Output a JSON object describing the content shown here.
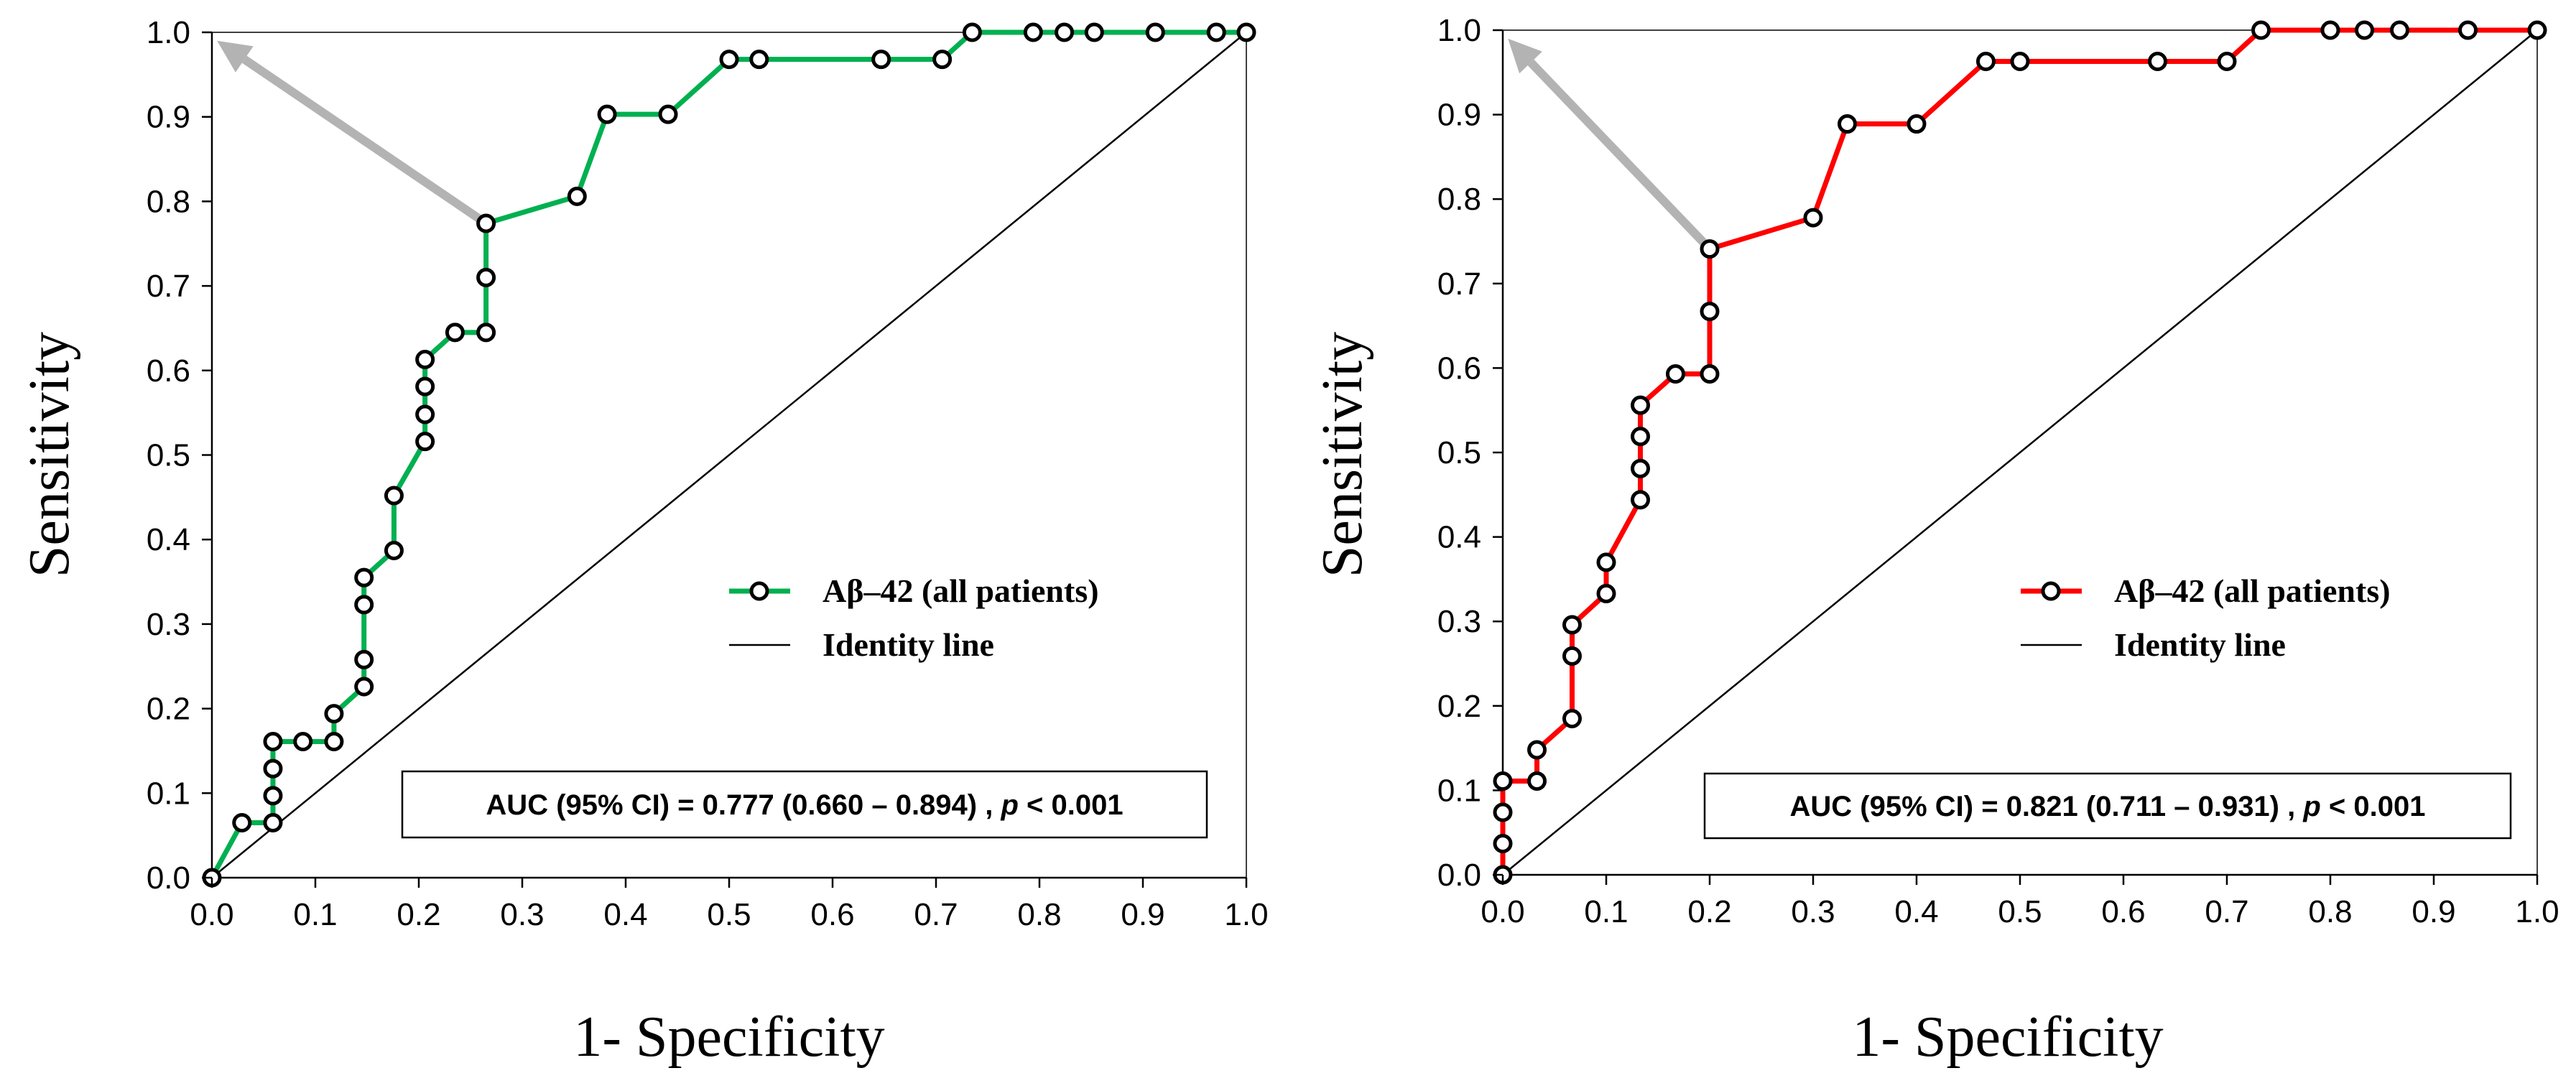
{
  "chart_data": [
    {
      "type": "line",
      "id": "left",
      "xlabel": "1- Specificity",
      "ylabel": "Sensitivity",
      "xlim": [
        0,
        1
      ],
      "ylim": [
        0,
        1
      ],
      "xticks": [
        "0.0",
        "0.1",
        "0.2",
        "0.3",
        "0.4",
        "0.5",
        "0.6",
        "0.7",
        "0.8",
        "0.9",
        "1.0"
      ],
      "yticks": [
        "0.0",
        "0.1",
        "0.2",
        "0.3",
        "0.4",
        "0.5",
        "0.6",
        "0.7",
        "0.8",
        "0.9",
        "1.0"
      ],
      "series": [
        {
          "name": "Aβ–42 (all patients)",
          "color": "#00b050",
          "x": [
            0,
            0.029,
            0.059,
            0.059,
            0.059,
            0.059,
            0.088,
            0.118,
            0.118,
            0.147,
            0.147,
            0.147,
            0.147,
            0.176,
            0.176,
            0.206,
            0.206,
            0.206,
            0.206,
            0.235,
            0.265,
            0.265,
            0.265,
            0.353,
            0.382,
            0.441,
            0.5,
            0.529,
            0.647,
            0.706,
            0.735,
            0.794,
            0.824,
            0.853,
            0.912,
            0.971,
            1.0
          ],
          "y": [
            0,
            0.065,
            0.065,
            0.097,
            0.129,
            0.161,
            0.161,
            0.161,
            0.194,
            0.226,
            0.258,
            0.323,
            0.355,
            0.387,
            0.452,
            0.516,
            0.548,
            0.581,
            0.613,
            0.645,
            0.645,
            0.71,
            0.774,
            0.806,
            0.903,
            0.903,
            0.968,
            0.968,
            0.968,
            0.968,
            1.0,
            1.0,
            1.0,
            1.0,
            1.0,
            1.0,
            1.0
          ]
        },
        {
          "name": "Identity line",
          "color": "#000000",
          "x": [
            0,
            1
          ],
          "y": [
            0,
            1
          ]
        }
      ],
      "annotation": {
        "prefix": "AUC (95% CI) = 0.777 (0.660 – 0.894) , ",
        "p_symbol": "p",
        "suffix": " < 0.001"
      },
      "arrow": {
        "from": [
          0.265,
          0.774
        ],
        "to": [
          0.005,
          0.99
        ]
      },
      "legend_position": "right-middle"
    },
    {
      "type": "line",
      "id": "right",
      "xlabel": "1- Specificity",
      "ylabel": "Sensitivity",
      "xlim": [
        0,
        1
      ],
      "ylim": [
        0,
        1
      ],
      "xticks": [
        "0.0",
        "0.1",
        "0.2",
        "0.3",
        "0.4",
        "0.5",
        "0.6",
        "0.7",
        "0.8",
        "0.9",
        "1.0"
      ],
      "yticks": [
        "0.0",
        "0.1",
        "0.2",
        "0.3",
        "0.4",
        "0.5",
        "0.6",
        "0.7",
        "0.8",
        "0.9",
        "1.0"
      ],
      "series": [
        {
          "name": "Aβ–42 (all patients)",
          "color": "#ff0000",
          "x": [
            0,
            0,
            0,
            0,
            0.033,
            0.033,
            0.067,
            0.067,
            0.067,
            0.1,
            0.1,
            0.133,
            0.133,
            0.133,
            0.133,
            0.167,
            0.2,
            0.2,
            0.2,
            0.3,
            0.333,
            0.4,
            0.467,
            0.5,
            0.633,
            0.7,
            0.733,
            0.8,
            0.833,
            0.867,
            0.933,
            1.0
          ],
          "y": [
            0,
            0.037,
            0.074,
            0.111,
            0.111,
            0.148,
            0.185,
            0.259,
            0.296,
            0.333,
            0.37,
            0.444,
            0.481,
            0.519,
            0.556,
            0.593,
            0.593,
            0.667,
            0.741,
            0.778,
            0.889,
            0.889,
            0.963,
            0.963,
            0.963,
            0.963,
            1.0,
            1.0,
            1.0,
            1.0,
            1.0,
            1.0
          ]
        },
        {
          "name": "Identity line",
          "color": "#000000",
          "x": [
            0,
            1
          ],
          "y": [
            0,
            1
          ]
        }
      ],
      "annotation": {
        "prefix": "AUC (95% CI) = 0.821 (0.711 – 0.931) , ",
        "p_symbol": "p",
        "suffix": " < 0.001"
      },
      "arrow": {
        "from": [
          0.2,
          0.741
        ],
        "to": [
          0.005,
          0.99
        ]
      },
      "legend_position": "right-middle"
    }
  ]
}
